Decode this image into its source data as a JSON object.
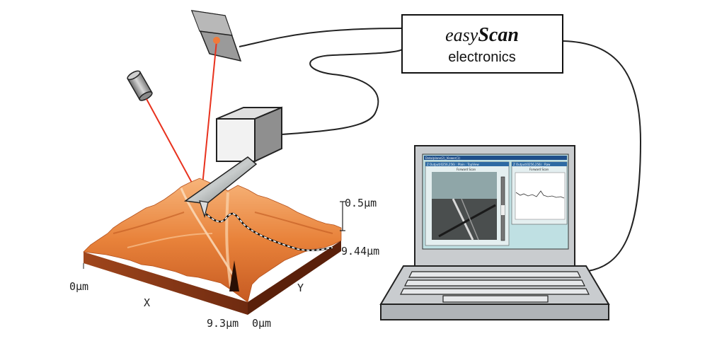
{
  "electronics_box": {
    "brand_prefix": "easy",
    "brand_name": "Scan",
    "subtitle": "electronics"
  },
  "surface_plot": {
    "z_max_label": "0.5μm",
    "y_max_label": "9.44μm",
    "x_min_label": "0μm",
    "x_axis_label": "X",
    "y_axis_label": "Y",
    "x_max_label": "9.3μm",
    "y_min_label": "0μm"
  },
  "laptop_screen": {
    "window_title": "Data/plane(2)_Viewer(1)",
    "panel_left_title": "Z Output(0256,256) : Plain : TopView",
    "panel_left_subtitle": "Forward Scan",
    "panel_right_title": "Z Output(0256,256) : Raw",
    "panel_right_subtitle": "Forward Scan"
  },
  "colors": {
    "laser": "#e8321e",
    "laser_spot": "#f07a3a",
    "surface_orange": "#e8823a",
    "surface_dark": "#8a3a1a",
    "screen_teal": "#bfe0e3",
    "laptop_gray": "#c9cccf"
  }
}
